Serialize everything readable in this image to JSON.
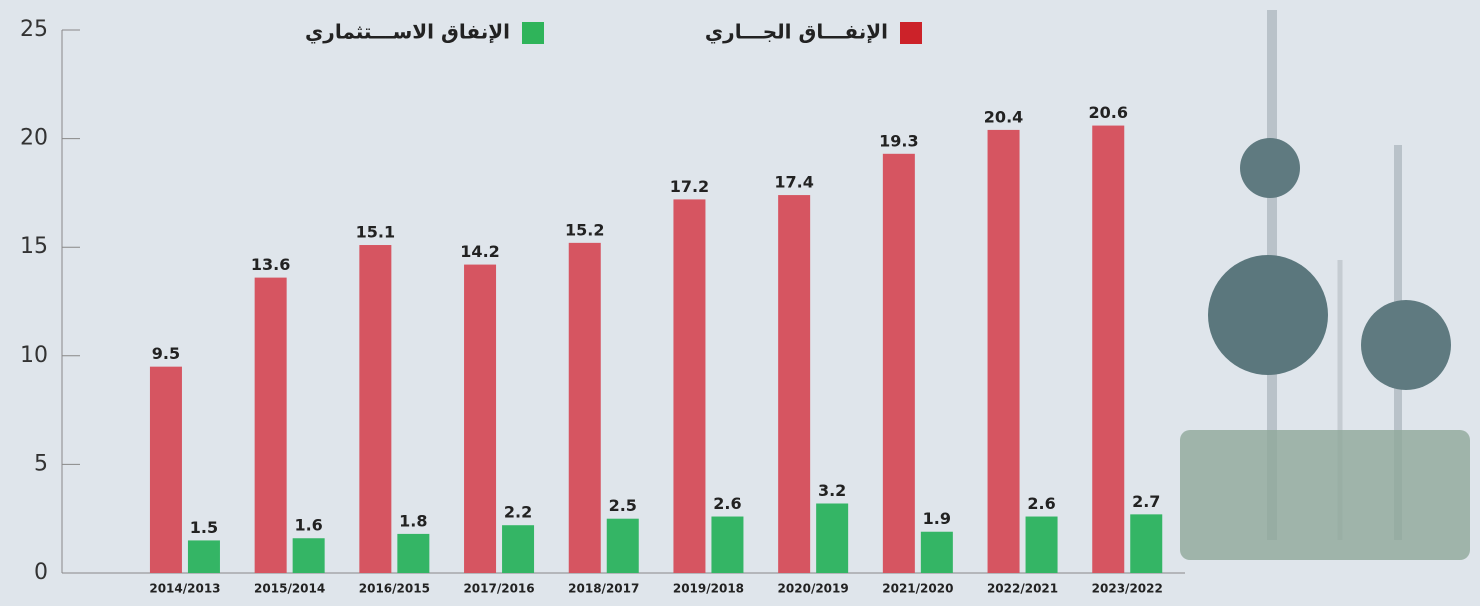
{
  "chart_data": {
    "type": "bar",
    "categories": [
      "2014/2013",
      "2015/2014",
      "2016/2015",
      "2017/2016",
      "2018/2017",
      "2019/2018",
      "2020/2019",
      "2021/2020",
      "2022/2021",
      "2023/2022"
    ],
    "series": [
      {
        "name": "الإنفـــاق الجـــاري",
        "color": "#d65561",
        "values": [
          9.5,
          13.6,
          15.1,
          14.2,
          15.2,
          17.2,
          17.4,
          19.3,
          20.4,
          20.6
        ]
      },
      {
        "name": "الإنفاق الاســـتثماري",
        "color": "#34b565",
        "values": [
          1.5,
          1.6,
          1.8,
          2.2,
          2.5,
          2.6,
          3.2,
          1.9,
          2.6,
          2.7
        ]
      }
    ],
    "ylim": [
      0,
      25
    ],
    "yticks": [
      0,
      5,
      10,
      15,
      20,
      25
    ]
  }
}
